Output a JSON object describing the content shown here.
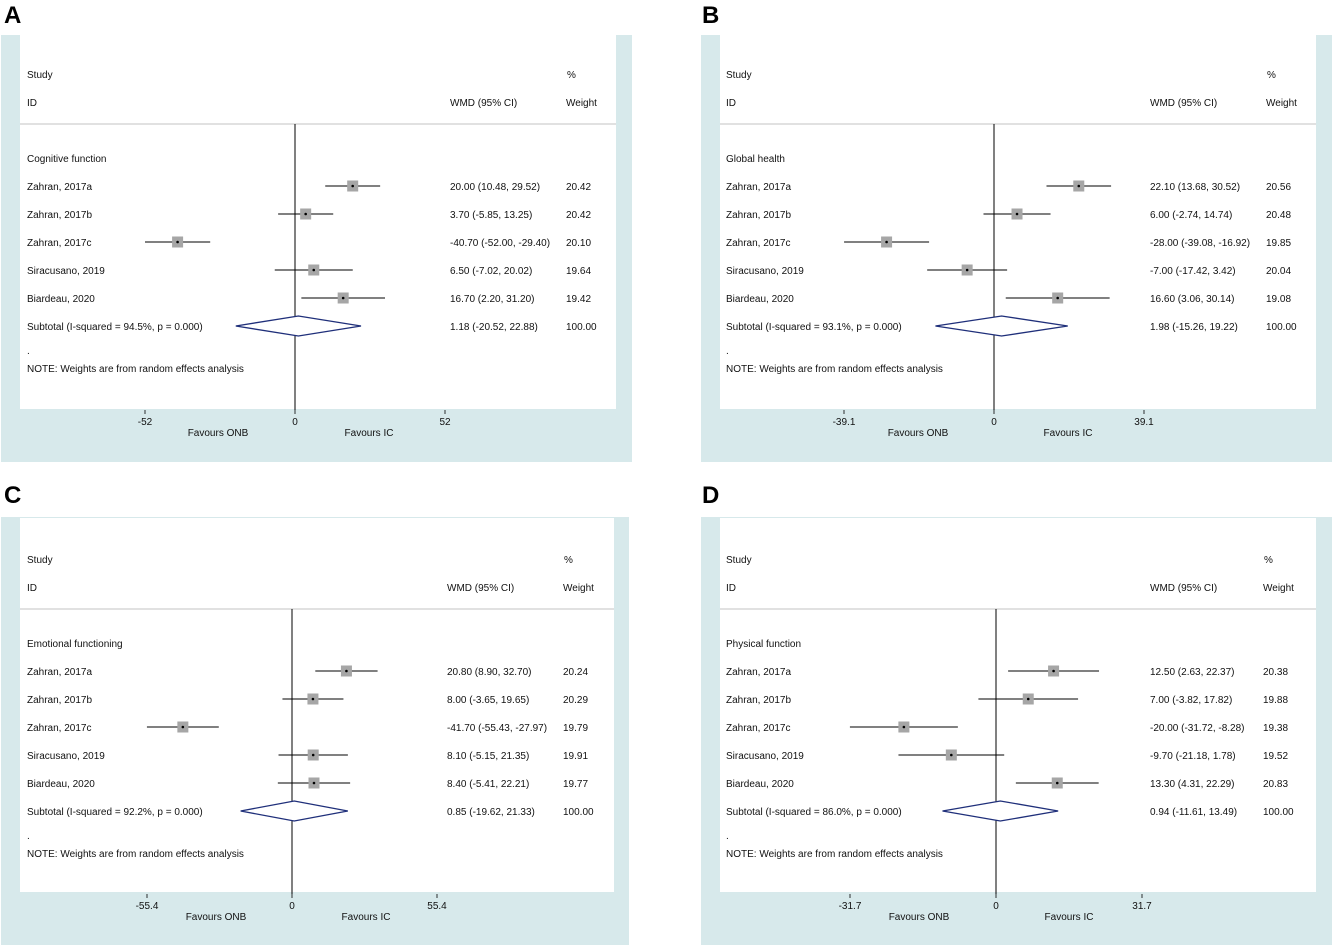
{
  "colors": {
    "panel_background": "#d7e9eb",
    "plot_background": "#ffffff",
    "box": "#a6a6a6",
    "diamond": "#1f2f7a",
    "line": "#000000"
  },
  "chart_data": [
    {
      "panel": "A",
      "type": "forest",
      "header": {
        "study": "Study",
        "id": "ID",
        "effect": "WMD (95% CI)",
        "pct": "%",
        "weight": "Weight"
      },
      "group_label": "Cognitive function",
      "axis": {
        "min": -52,
        "max": 52,
        "ticks": [
          {
            "v": -52,
            "label": "-52"
          },
          {
            "v": 0,
            "label": "0"
          },
          {
            "v": 52,
            "label": "52"
          }
        ]
      },
      "xlabel_left": "Favours ONB",
      "xlabel_right": "Favours IC",
      "studies": [
        {
          "id": "Zahran, 2017a",
          "est": 20.0,
          "lo": 10.48,
          "hi": 29.52,
          "ci_text": "20.00 (10.48, 29.52)",
          "weight": "20.42"
        },
        {
          "id": "Zahran, 2017b",
          "est": 3.7,
          "lo": -5.85,
          "hi": 13.25,
          "ci_text": "3.70 (-5.85, 13.25)",
          "weight": "20.42"
        },
        {
          "id": "Zahran, 2017c",
          "est": -40.7,
          "lo": -52.0,
          "hi": -29.4,
          "ci_text": "-40.70 (-52.00, -29.40)",
          "weight": "20.10"
        },
        {
          "id": "Siracusano, 2019",
          "est": 6.5,
          "lo": -7.02,
          "hi": 20.02,
          "ci_text": "6.50 (-7.02, 20.02)",
          "weight": "19.64"
        },
        {
          "id": "Biardeau, 2020",
          "est": 16.7,
          "lo": 2.2,
          "hi": 31.2,
          "ci_text": "16.70 (2.20, 31.20)",
          "weight": "19.42"
        }
      ],
      "subtotal": {
        "label": "Subtotal  (I-squared = 94.5%, p = 0.000)",
        "est": 1.18,
        "lo": -20.52,
        "hi": 22.88,
        "ci_text": "1.18 (-20.52, 22.88)",
        "weight": "100.00"
      },
      "dot": ".",
      "note": "NOTE: Weights are from random effects analysis"
    },
    {
      "panel": "B",
      "type": "forest",
      "header": {
        "study": "Study",
        "id": "ID",
        "effect": "WMD (95% CI)",
        "pct": "%",
        "weight": "Weight"
      },
      "group_label": "Global health",
      "axis": {
        "min": -39.1,
        "max": 39.1,
        "ticks": [
          {
            "v": -39.1,
            "label": "-39.1"
          },
          {
            "v": 0,
            "label": "0"
          },
          {
            "v": 39.1,
            "label": "39.1"
          }
        ]
      },
      "xlabel_left": "Favours ONB",
      "xlabel_right": "Favours IC",
      "studies": [
        {
          "id": "Zahran, 2017a",
          "est": 22.1,
          "lo": 13.68,
          "hi": 30.52,
          "ci_text": "22.10 (13.68, 30.52)",
          "weight": "20.56"
        },
        {
          "id": "Zahran, 2017b",
          "est": 6.0,
          "lo": -2.74,
          "hi": 14.74,
          "ci_text": "6.00 (-2.74, 14.74)",
          "weight": "20.48"
        },
        {
          "id": "Zahran, 2017c",
          "est": -28.0,
          "lo": -39.08,
          "hi": -16.92,
          "ci_text": "-28.00 (-39.08, -16.92)",
          "weight": "19.85"
        },
        {
          "id": "Siracusano, 2019",
          "est": -7.0,
          "lo": -17.42,
          "hi": 3.42,
          "ci_text": "-7.00 (-17.42, 3.42)",
          "weight": "20.04"
        },
        {
          "id": "Biardeau, 2020",
          "est": 16.6,
          "lo": 3.06,
          "hi": 30.14,
          "ci_text": "16.60 (3.06, 30.14)",
          "weight": "19.08"
        }
      ],
      "subtotal": {
        "label": "Subtotal  (I-squared = 93.1%, p = 0.000)",
        "est": 1.98,
        "lo": -15.26,
        "hi": 19.22,
        "ci_text": "1.98 (-15.26, 19.22)",
        "weight": "100.00"
      },
      "dot": ".",
      "note": "NOTE: Weights are from random effects analysis"
    },
    {
      "panel": "C",
      "type": "forest",
      "header": {
        "study": "Study",
        "id": "ID",
        "effect": "WMD (95% CI)",
        "pct": "%",
        "weight": "Weight"
      },
      "group_label": "Emotional functioning",
      "axis": {
        "min": -55.4,
        "max": 55.4,
        "ticks": [
          {
            "v": -55.4,
            "label": "-55.4"
          },
          {
            "v": 0,
            "label": "0"
          },
          {
            "v": 55.4,
            "label": "55.4"
          }
        ]
      },
      "xlabel_left": "Favours ONB",
      "xlabel_right": "Favours IC",
      "studies": [
        {
          "id": "Zahran, 2017a",
          "est": 20.8,
          "lo": 8.9,
          "hi": 32.7,
          "ci_text": "20.80 (8.90, 32.70)",
          "weight": "20.24"
        },
        {
          "id": "Zahran, 2017b",
          "est": 8.0,
          "lo": -3.65,
          "hi": 19.65,
          "ci_text": "8.00 (-3.65, 19.65)",
          "weight": "20.29"
        },
        {
          "id": "Zahran, 2017c",
          "est": -41.7,
          "lo": -55.43,
          "hi": -27.97,
          "ci_text": "-41.70 (-55.43, -27.97)",
          "weight": "19.79"
        },
        {
          "id": "Siracusano, 2019",
          "est": 8.1,
          "lo": -5.15,
          "hi": 21.35,
          "ci_text": "8.10 (-5.15, 21.35)",
          "weight": "19.91"
        },
        {
          "id": "Biardeau, 2020",
          "est": 8.4,
          "lo": -5.41,
          "hi": 22.21,
          "ci_text": "8.40 (-5.41, 22.21)",
          "weight": "19.77"
        }
      ],
      "subtotal": {
        "label": "Subtotal  (I-squared = 92.2%, p = 0.000)",
        "est": 0.85,
        "lo": -19.62,
        "hi": 21.33,
        "ci_text": "0.85 (-19.62, 21.33)",
        "weight": "100.00"
      },
      "dot": ".",
      "note": "NOTE: Weights are from random effects analysis"
    },
    {
      "panel": "D",
      "type": "forest",
      "header": {
        "study": "Study",
        "id": "ID",
        "effect": "WMD (95% CI)",
        "pct": "%",
        "weight": "Weight"
      },
      "group_label": "Physical function",
      "axis": {
        "min": -31.7,
        "max": 31.7,
        "ticks": [
          {
            "v": -31.7,
            "label": "-31.7"
          },
          {
            "v": 0,
            "label": "0"
          },
          {
            "v": 31.7,
            "label": "31.7"
          }
        ]
      },
      "xlabel_left": "Favours ONB",
      "xlabel_right": "Favours IC",
      "studies": [
        {
          "id": "Zahran, 2017a",
          "est": 12.5,
          "lo": 2.63,
          "hi": 22.37,
          "ci_text": "12.50 (2.63, 22.37)",
          "weight": "20.38"
        },
        {
          "id": "Zahran, 2017b",
          "est": 7.0,
          "lo": -3.82,
          "hi": 17.82,
          "ci_text": "7.00 (-3.82, 17.82)",
          "weight": "19.88"
        },
        {
          "id": "Zahran, 2017c",
          "est": -20.0,
          "lo": -31.72,
          "hi": -8.28,
          "ci_text": "-20.00 (-31.72, -8.28)",
          "weight": "19.38"
        },
        {
          "id": "Siracusano, 2019",
          "est": -9.7,
          "lo": -21.18,
          "hi": 1.78,
          "ci_text": "-9.70 (-21.18, 1.78)",
          "weight": "19.52"
        },
        {
          "id": "Biardeau, 2020",
          "est": 13.3,
          "lo": 4.31,
          "hi": 22.29,
          "ci_text": "13.30 (4.31, 22.29)",
          "weight": "20.83"
        }
      ],
      "subtotal": {
        "label": "Subtotal  (I-squared = 86.0%, p = 0.000)",
        "est": 0.94,
        "lo": -11.61,
        "hi": 13.49,
        "ci_text": "0.94 (-11.61, 13.49)",
        "weight": "100.00"
      },
      "dot": ".",
      "note": "NOTE: Weights are from random effects analysis"
    }
  ]
}
